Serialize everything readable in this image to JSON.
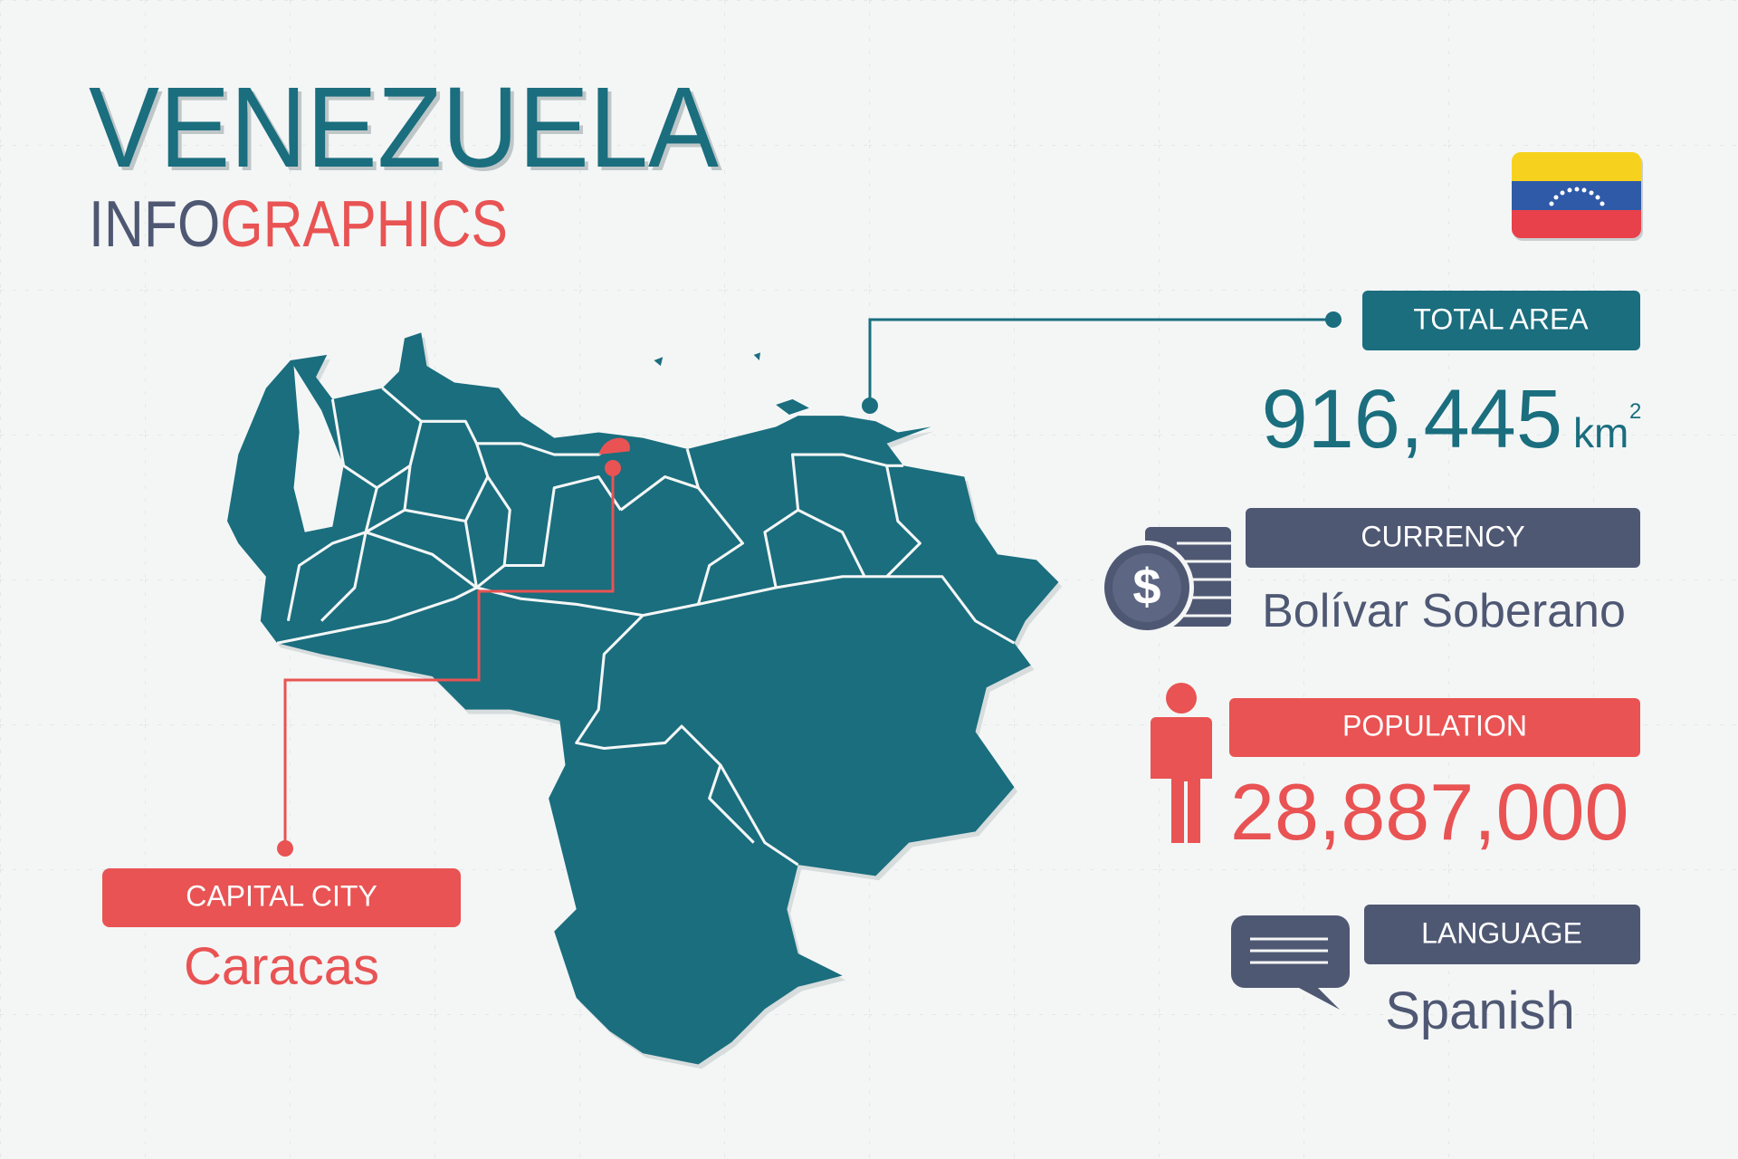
{
  "header": {
    "title": "VENEZUELA",
    "subtitle": [
      "INFO",
      "GRAPHICS"
    ]
  },
  "capital": {
    "label": "CAPITAL CITY",
    "value": "Caracas"
  },
  "total_area": {
    "label": "TOTAL AREA",
    "value": "916,445",
    "unit": "km",
    "unit_power": "2"
  },
  "currency": {
    "label": "CURRENCY",
    "value": "Bolívar Soberano"
  },
  "population": {
    "label": "POPULATION",
    "value": "28,887,000"
  },
  "language": {
    "label": "LANGUAGE",
    "value": "Spanish"
  }
}
